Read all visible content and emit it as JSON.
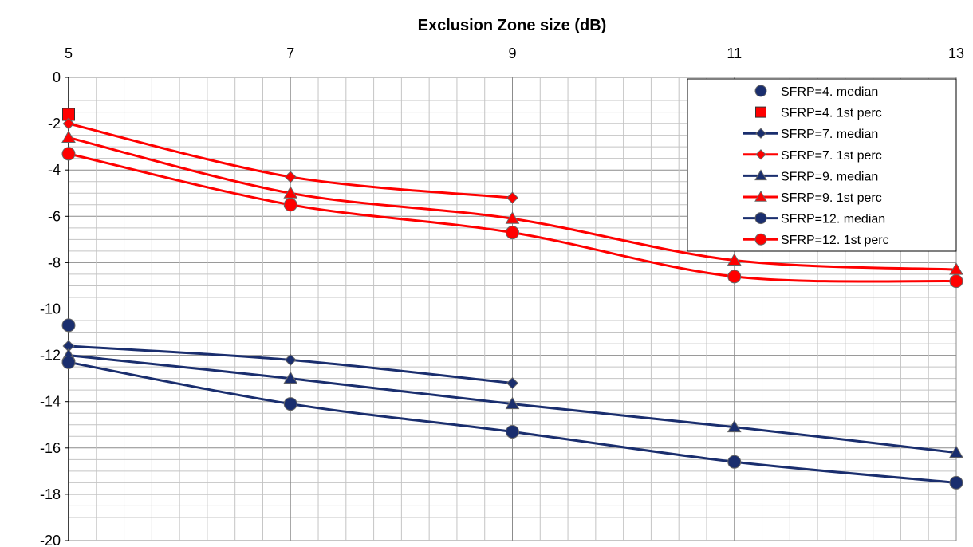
{
  "chart_data": {
    "type": "line",
    "title": "Exclusion Zone size (dB)",
    "xlabel": "Exclusion Zone size (dB)",
    "ylabel": "",
    "x_ticks": [
      5,
      7,
      9,
      11,
      13
    ],
    "y_ticks": [
      0,
      -2,
      -4,
      -6,
      -8,
      -10,
      -12,
      -14,
      -16,
      -18,
      -20
    ],
    "xlim": [
      5,
      13
    ],
    "ylim": [
      -20,
      0
    ],
    "x_axis_position": "top",
    "grid": true,
    "legend_position": "top-right",
    "series": [
      {
        "name": "SFRP=4. median",
        "color": "#1a2e6e",
        "marker": "circle",
        "line": false,
        "x": [
          5
        ],
        "y": [
          -10.7
        ]
      },
      {
        "name": "SFRP=4. 1st perc",
        "color": "#ff0000",
        "marker": "square",
        "line": false,
        "x": [
          5
        ],
        "y": [
          -1.6
        ]
      },
      {
        "name": "SFRP=7. median",
        "color": "#1a2e6e",
        "marker": "diamond",
        "line": true,
        "x": [
          5,
          7,
          9
        ],
        "y": [
          -11.6,
          -12.2,
          -13.2
        ]
      },
      {
        "name": "SFRP=7. 1st perc",
        "color": "#ff0000",
        "marker": "diamond",
        "line": true,
        "x": [
          5,
          7,
          9
        ],
        "y": [
          -2.0,
          -4.3,
          -5.2
        ]
      },
      {
        "name": "SFRP=9. median",
        "color": "#1a2e6e",
        "marker": "triangle",
        "line": true,
        "x": [
          5,
          7,
          9,
          11,
          13
        ],
        "y": [
          -12.0,
          -13.0,
          -14.1,
          -15.1,
          -16.2
        ]
      },
      {
        "name": "SFRP=9. 1st perc",
        "color": "#ff0000",
        "marker": "triangle",
        "line": true,
        "x": [
          5,
          7,
          9,
          11,
          13
        ],
        "y": [
          -2.6,
          -5.0,
          -6.1,
          -7.9,
          -8.3
        ]
      },
      {
        "name": "SFRP=12. median",
        "color": "#1a2e6e",
        "marker": "circle",
        "line": true,
        "x": [
          5,
          7,
          9,
          11,
          13
        ],
        "y": [
          -12.3,
          -14.1,
          -15.3,
          -16.6,
          -17.5
        ]
      },
      {
        "name": "SFRP=12. 1st perc",
        "color": "#ff0000",
        "marker": "circle",
        "line": true,
        "x": [
          5,
          7,
          9,
          11,
          13
        ],
        "y": [
          -3.3,
          -5.5,
          -6.7,
          -8.6,
          -8.8
        ]
      }
    ]
  }
}
